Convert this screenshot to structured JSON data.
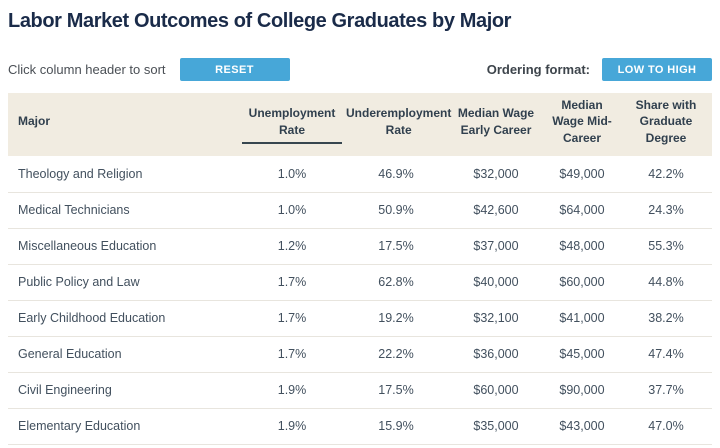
{
  "page": {
    "title": "Labor Market Outcomes of College Graduates by Major"
  },
  "toolbar": {
    "sort_hint": "Click column header to sort",
    "reset_label": "RESET",
    "ordering_label": "Ordering format:",
    "ordering_value": "LOW TO HIGH"
  },
  "colors": {
    "accent_blue": "#47a7d8",
    "title_navy": "#1a2b49",
    "header_bg": "#f1ece1",
    "header_text": "#31404e",
    "row_text": "#42505e",
    "sort_underline": "#37464f"
  },
  "table": {
    "columns": [
      {
        "key": "major",
        "label": "Major",
        "sorted": false
      },
      {
        "key": "unemployment",
        "label": "Unemployment Rate",
        "sorted": true
      },
      {
        "key": "underemployment",
        "label": "Underemployment Rate",
        "sorted": false
      },
      {
        "key": "wage_early",
        "label": "Median Wage Early Career",
        "sorted": false
      },
      {
        "key": "wage_mid",
        "label": "Median Wage Mid-Career",
        "sorted": false
      },
      {
        "key": "grad_share",
        "label": "Share with Graduate Degree",
        "sorted": false
      }
    ],
    "rows": [
      {
        "major": "Theology and Religion",
        "unemployment": "1.0%",
        "underemployment": "46.9%",
        "wage_early": "$32,000",
        "wage_mid": "$49,000",
        "grad_share": "42.2%"
      },
      {
        "major": "Medical Technicians",
        "unemployment": "1.0%",
        "underemployment": "50.9%",
        "wage_early": "$42,600",
        "wage_mid": "$64,000",
        "grad_share": "24.3%"
      },
      {
        "major": "Miscellaneous Education",
        "unemployment": "1.2%",
        "underemployment": "17.5%",
        "wage_early": "$37,000",
        "wage_mid": "$48,000",
        "grad_share": "55.3%"
      },
      {
        "major": "Public Policy and Law",
        "unemployment": "1.7%",
        "underemployment": "62.8%",
        "wage_early": "$40,000",
        "wage_mid": "$60,000",
        "grad_share": "44.8%"
      },
      {
        "major": "Early Childhood Education",
        "unemployment": "1.7%",
        "underemployment": "19.2%",
        "wage_early": "$32,100",
        "wage_mid": "$41,000",
        "grad_share": "38.2%"
      },
      {
        "major": "General Education",
        "unemployment": "1.7%",
        "underemployment": "22.2%",
        "wage_early": "$36,000",
        "wage_mid": "$45,000",
        "grad_share": "47.4%"
      },
      {
        "major": "Civil Engineering",
        "unemployment": "1.9%",
        "underemployment": "17.5%",
        "wage_early": "$60,000",
        "wage_mid": "$90,000",
        "grad_share": "37.7%"
      },
      {
        "major": "Elementary Education",
        "unemployment": "1.9%",
        "underemployment": "15.9%",
        "wage_early": "$35,000",
        "wage_mid": "$43,000",
        "grad_share": "47.0%"
      }
    ]
  }
}
